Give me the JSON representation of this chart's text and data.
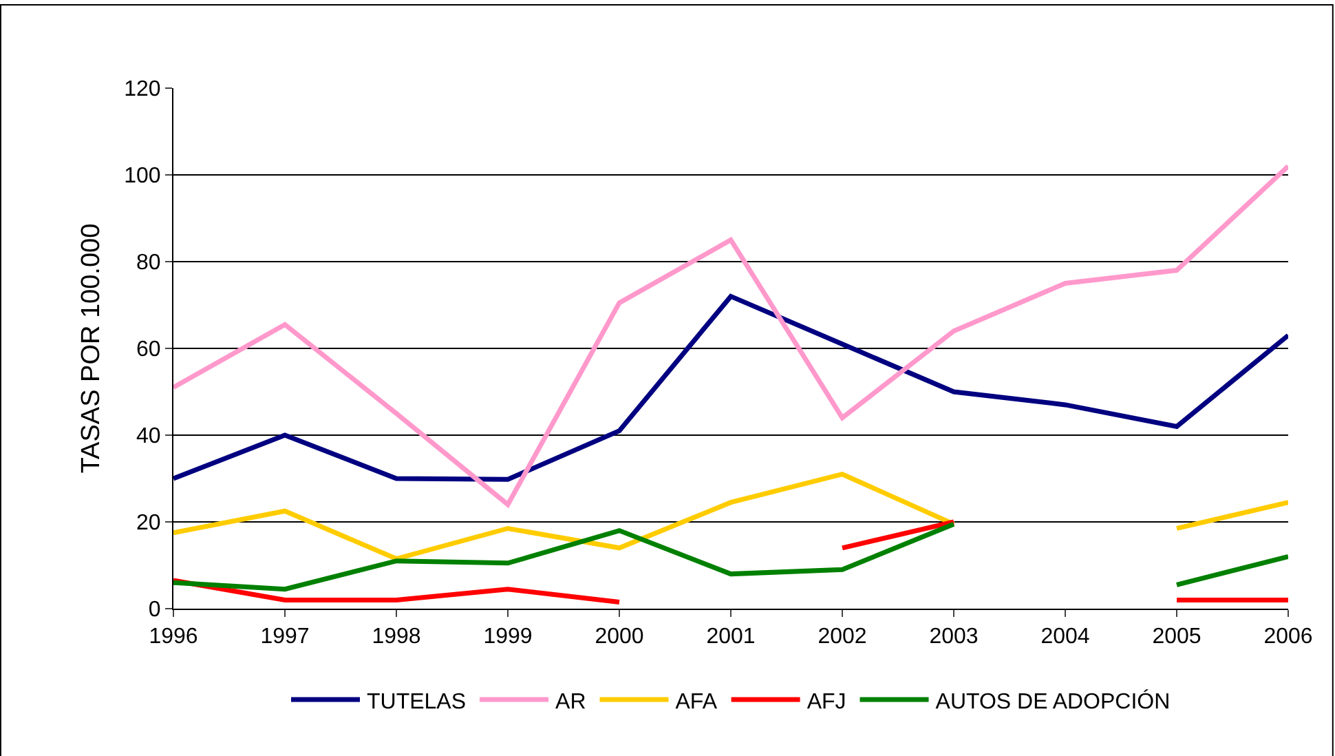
{
  "chart_data": {
    "type": "line",
    "ylabel": "TASAS POR 100.000",
    "x": [
      1996,
      1997,
      1998,
      1999,
      2000,
      2001,
      2002,
      2003,
      2004,
      2005,
      2006
    ],
    "xlim": [
      1996,
      2006
    ],
    "xticks": [
      1996,
      1997,
      1998,
      1999,
      2000,
      2001,
      2002,
      2003,
      2004,
      2005,
      2006
    ],
    "ylim": [
      0,
      120
    ],
    "yticks": [
      0,
      20,
      40,
      60,
      80,
      100,
      120
    ],
    "grid": "y",
    "legend": "bottom",
    "marker": "none",
    "line_style": "solid",
    "series": [
      {
        "name": "TUTELAS",
        "color": "#000080",
        "values": [
          30,
          40,
          30,
          29.8,
          41,
          72,
          61,
          50,
          47,
          42,
          63
        ]
      },
      {
        "name": "AR",
        "color": "#ff99cc",
        "values": [
          51,
          65.5,
          45,
          24,
          70.5,
          85,
          44,
          64,
          75,
          78,
          102
        ]
      },
      {
        "name": "AFA",
        "color": "#ffcc00",
        "values": [
          17.5,
          22.5,
          11.5,
          18.5,
          14,
          24.5,
          31,
          19.5,
          null,
          18.5,
          24.5
        ]
      },
      {
        "name": "AFJ",
        "color": "#ff0000",
        "values": [
          6.5,
          2,
          2,
          4.5,
          1.5,
          null,
          14,
          20,
          null,
          2,
          2
        ]
      },
      {
        "name": "AUTOS DE ADOPCIÓN",
        "color": "#008000",
        "values": [
          6,
          4.5,
          11,
          10.5,
          18,
          8,
          9,
          19.5,
          null,
          5.5,
          12
        ]
      }
    ]
  }
}
